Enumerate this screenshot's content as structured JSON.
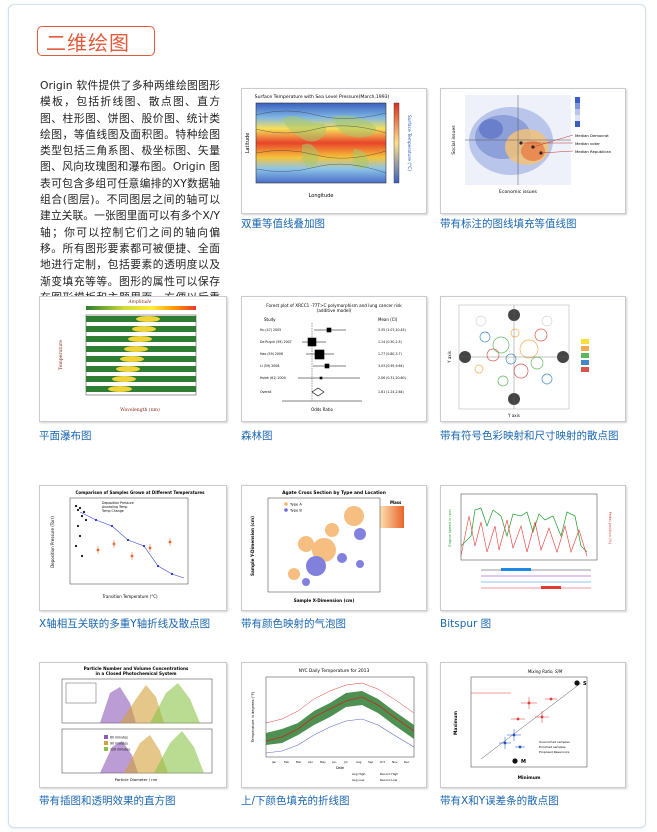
{
  "page": {
    "title": "二维绘图",
    "intro": "Origin 软件提供了多种两维绘图图形模板，包括折线图、散点图、直方图、柱形图、饼图、股价图、统计类绘图，等值线图及面积图。特种绘图类型包括三角系图、极坐标图、矢量图、风向玫瑰图和瀑布图。Origin 图表可包含多组可任意编排的XY数据轴组合(图层)。不同图层之间的轴可以建立关联。一张图里面可以有多个X/Y轴；你可以控制它们之间的轴向偏移。所有图形要素都可被便捷、全面地进行定制，包括要素的透明度以及渐变填充等等。图形的属性可以保存在图形模板和主题里面，方便以后重复使用。"
  },
  "gallery": [
    {
      "caption": "双重等值线叠加图",
      "thumb_title": "Surface Temperature with Sea Level Pressure(March,1993)",
      "xlabel": "Longitude",
      "ylabel": "Latitude",
      "cbar_label": "Surface Temperature (°C)"
    },
    {
      "caption": "带有标注的图线填充等值线图",
      "xlabel": "Economic issues",
      "ylabel": "Social issues",
      "legend": [
        "Median Democrat",
        "Median voter",
        "Median Republican"
      ]
    },
    {
      "caption": "平面瀑布图",
      "thumb_title": "Amplitude",
      "xlabel": "Wavelength (nm)",
      "ylabel": "Temperature"
    },
    {
      "caption": "森林图",
      "thumb_title": "Forest plot of XRCC1 -77T>C polymorphism and lung cancer risk",
      "thumb_subtitle": "(additive model)",
      "col_study": "Study",
      "col_mean": "Mean (CI)",
      "xlabel": "Odds Ratio",
      "rows": [
        {
          "study": "Hu (47) 2005",
          "ci": "3.35 (1.07,10.45)"
        },
        {
          "study": "De Ruyck (59) 2007",
          "ci": "1.14 (0.50,2.5)"
        },
        {
          "study": "Hao (59) 2006",
          "ci": "1.77 (0.80,3.7)"
        },
        {
          "study": "Li (59) 2008",
          "ci": "3.03 (0.95,9.64)"
        },
        {
          "study": "Hsieh (61) 2009",
          "ci": "2.06 (0.31,20.60)"
        },
        {
          "study": "Overall",
          "ci": "1.81 (1.24,2.64)"
        }
      ]
    },
    {
      "caption": "带有符号色彩映射和尺寸映射的散点图",
      "xlabel": "Y axis",
      "ylabel": "Y axis"
    },
    {
      "caption": "X轴相互关联的多重Y轴折线及散点图",
      "thumb_title": "Comparison of Samples Grown at Different Temperatures",
      "legend": [
        "Deposition Pressure",
        "Annealing Temp",
        "Temp Change"
      ],
      "xlabel": "Transition Temperature (°C)",
      "ylabel": "Deposition Pressure (Torr)"
    },
    {
      "caption": "带有颜色映射的气泡图",
      "thumb_title": "Agate Cross Section by Type and Location",
      "legend": [
        "Type A",
        "Type B"
      ],
      "mass_label": "Mass",
      "xlabel": "Sample X-Dimension (cm)",
      "ylabel": "Sample Y-Dimension (cm)"
    },
    {
      "caption": "Bitspur 图",
      "ylabel_left": "Engine speed in rpm",
      "ylabel_right": "Pedal position (%)"
    },
    {
      "caption": "带有插图和透明效果的直方图",
      "thumb_title": "Particle Number and Volume Concentrations",
      "thumb_subtitle": "in a Closed Photochemical System",
      "legend": [
        "60 minutes",
        "90 minutes",
        "120 minutes"
      ],
      "xlabel": "Particle Diameter / nm"
    },
    {
      "caption": "上/下颜色填充的折线图",
      "thumb_title": "NYC Daily Temperature for 2013",
      "xlabel": "Date",
      "ylabel": "Temperature in degrees (°F)",
      "months": [
        "Jan",
        "Feb",
        "Mar",
        "Apr",
        "May",
        "Jun",
        "Jul",
        "Aug",
        "Sep",
        "Oct",
        "Nov",
        "Dec"
      ],
      "legend": [
        "Avg High",
        "Record High",
        "Avg Low",
        "Record Low"
      ]
    },
    {
      "caption": "带有X和Y误差条的散点图",
      "thumb_title": "Mixing Ratio, S/M",
      "xlabel": "Minimum",
      "ylabel": "Maximum",
      "legend": [
        "Unenriched samples",
        "Enriched samples",
        "Proposed Reservoirs"
      ],
      "marks": [
        "S",
        "M"
      ]
    }
  ]
}
